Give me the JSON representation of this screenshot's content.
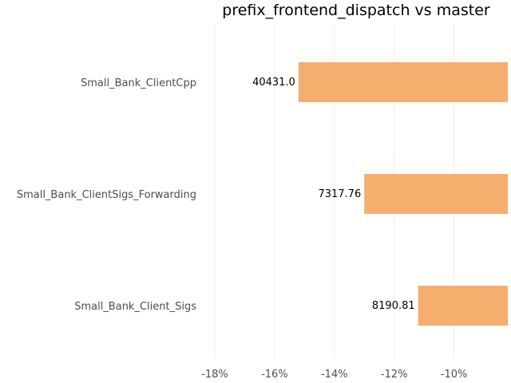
{
  "chart_data": {
    "type": "bar",
    "orientation": "horizontal",
    "title": "prefix_frontend_dispatch vs master",
    "xlabel": "",
    "ylabel": "",
    "categories": [
      "Small_Bank_ClientCpp",
      "Small_Bank_ClientSigs_Forwarding",
      "Small_Bank_Client_Sigs"
    ],
    "values": [
      -15.2,
      -13.0,
      -11.2
    ],
    "value_labels": [
      "40431.0",
      "7317.76",
      "8190.81"
    ],
    "xlim": [
      -18.4,
      -8.2
    ],
    "xticks": [
      -18,
      -16,
      -14,
      -12,
      -10
    ],
    "xtick_labels": [
      "-18%",
      "-16%",
      "-14%",
      "-12%",
      "-10%"
    ],
    "bar_color": "#f5ae6e",
    "grid": true,
    "legend": "none"
  }
}
